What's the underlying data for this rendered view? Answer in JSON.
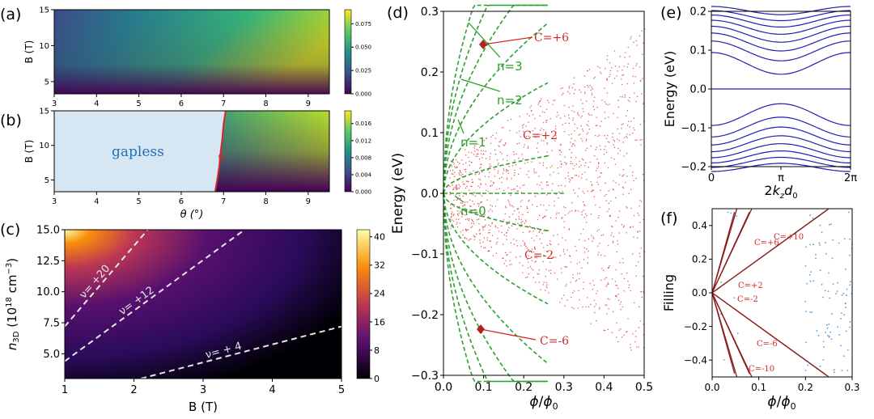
{
  "panels": {
    "a": {
      "label": "(a)"
    },
    "b": {
      "label": "(b)",
      "region_label": "gapless"
    },
    "c": {
      "label": "(c)"
    },
    "d": {
      "label": "(d)"
    },
    "e": {
      "label": "(e)"
    },
    "f": {
      "label": "(f)"
    }
  },
  "colors": {
    "red": "#d62728",
    "green": "#2ca02c",
    "blue": "#1f1fb4",
    "gapless_fill": "#d6e6f2",
    "gapless_text": "#1f6fb8",
    "dot": "#5b9bd5"
  },
  "chart_data": [
    {
      "id": "a",
      "type": "heatmap",
      "xlim": [
        3,
        9.5
      ],
      "ylim": [
        3.3,
        15
      ],
      "xticks": [
        "3",
        "4",
        "5",
        "6",
        "7",
        "8",
        "9"
      ],
      "yticks": [
        "5",
        "10",
        "15"
      ],
      "ylabel": "B (T)",
      "colorbar": {
        "min": 0,
        "max": 0.09,
        "ticks": [
          "0.000",
          "0.025",
          "0.050",
          "0.075"
        ],
        "colormap": "viridis"
      }
    },
    {
      "id": "b",
      "type": "heatmap",
      "xlim": [
        3,
        9.5
      ],
      "ylim": [
        3.3,
        15
      ],
      "xticks": [
        "3",
        "4",
        "5",
        "6",
        "7",
        "8",
        "9"
      ],
      "yticks": [
        "5",
        "10",
        "15"
      ],
      "xlabel": "θ (°)",
      "ylabel": "B (T)",
      "colorbar": {
        "min": 0,
        "max": 0.019,
        "ticks": [
          "0.000",
          "0.004",
          "0.008",
          "0.012",
          "0.016"
        ],
        "colormap": "viridis"
      },
      "boundary_theta_vs_B": [
        [
          6.8,
          3.3
        ],
        [
          6.85,
          5
        ],
        [
          6.9,
          7
        ],
        [
          6.93,
          9
        ],
        [
          6.97,
          11
        ],
        [
          7.0,
          13
        ],
        [
          7.05,
          15
        ]
      ],
      "marker": {
        "theta": 6.95,
        "B": 8.4
      }
    },
    {
      "id": "c",
      "type": "heatmap",
      "xlim": [
        1,
        5
      ],
      "ylim": [
        3,
        15
      ],
      "xticks": [
        "1",
        "2",
        "3",
        "4",
        "5"
      ],
      "yticks": [
        "5.0",
        "7.5",
        "10.0",
        "12.5",
        "15.0"
      ],
      "xlabel": "B (T)",
      "ylabel": "n3D (10^18 cm^-3)",
      "colorbar": {
        "min": 0,
        "max": 42,
        "ticks": [
          "0",
          "8",
          "16",
          "24",
          "32",
          "40"
        ],
        "colormap": "inferno"
      },
      "lines": [
        {
          "label": "ν= +20",
          "points": [
            [
              1,
              7.2
            ],
            [
              2.2,
              15
            ]
          ]
        },
        {
          "label": "ν= +12",
          "points": [
            [
              1,
              4.4
            ],
            [
              3.6,
              15
            ]
          ]
        },
        {
          "label": "ν= + 4",
          "points": [
            [
              2.1,
              3
            ],
            [
              5,
              7.2
            ]
          ]
        }
      ]
    },
    {
      "id": "d",
      "type": "scatter",
      "xlim": [
        0,
        0.5
      ],
      "ylim": [
        -0.3,
        0.3
      ],
      "xticks": [
        "0.0",
        "0.1",
        "0.2",
        "0.3",
        "0.4",
        "0.5"
      ],
      "yticks": [
        "−0.3",
        "−0.2",
        "−0.1",
        "0.0",
        "0.1",
        "0.2",
        "0.3"
      ],
      "xlabel": "φ/φ0",
      "ylabel": "Energy (eV)",
      "landau_levels": [
        "n=0",
        "n=1",
        "n=2",
        "n=3"
      ],
      "chern_labels": [
        "C=+6",
        "C=+2",
        "C=-2",
        "C=-6"
      ]
    },
    {
      "id": "e",
      "type": "line",
      "xlim": [
        0,
        6.283
      ],
      "ylim": [
        -0.2,
        0.2
      ],
      "xticks": [
        "0",
        "π",
        "2π"
      ],
      "yticks": [
        "−0.2",
        "−0.1",
        "0.0",
        "0.1",
        "0.2"
      ],
      "xlabel": "2kzd0",
      "ylabel": "Energy (eV)",
      "band_centers": [
        0.066,
        0.098,
        0.121,
        0.141,
        0.159,
        0.175,
        0.189,
        0.202
      ],
      "zero_band": 0.0
    },
    {
      "id": "f",
      "type": "line",
      "xlim": [
        0,
        0.3
      ],
      "ylim": [
        -0.5,
        0.5
      ],
      "xticks": [
        "0.0",
        "0.1",
        "0.2",
        "0.3"
      ],
      "yticks": [
        "−0.4",
        "−0.2",
        "0.0",
        "0.2",
        "0.4"
      ],
      "xlabel": "φ/φ0",
      "ylabel": "Filling",
      "chern_lines": [
        "C=+10",
        "C=+6",
        "C=+2",
        "C=-2",
        "C=-6",
        "C=-10"
      ]
    }
  ]
}
